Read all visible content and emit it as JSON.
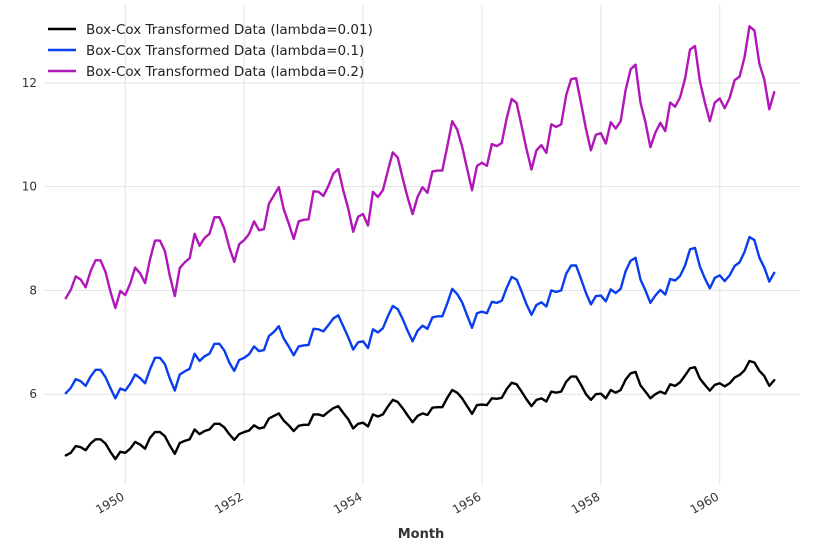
{
  "chart_data": {
    "type": "line",
    "title": "",
    "xlabel": "Month",
    "ylabel": "",
    "xlim": [
      1948.65,
      1961.35
    ],
    "ylim": [
      4.25,
      13.5
    ],
    "grid": true,
    "legend_position": "top-left",
    "x_ticks": [
      1950,
      1952,
      1954,
      1956,
      1958,
      1960
    ],
    "x_tick_labels": [
      "1950",
      "1952",
      "1954",
      "1956",
      "1958",
      "1960"
    ],
    "y_ticks": [
      6,
      8,
      10,
      12
    ],
    "y_tick_labels": [
      "6",
      "8",
      "10",
      "12"
    ],
    "x_start": 1949.0,
    "x_step": 0.0833333,
    "series": [
      {
        "name": "Box-Cox Transformed Data (lambda=0.01)",
        "color": "#000000",
        "values": [
          4.82,
          4.87,
          5.0,
          4.98,
          4.92,
          5.05,
          5.13,
          5.13,
          5.05,
          4.89,
          4.75,
          4.89,
          4.87,
          4.95,
          5.08,
          5.03,
          4.95,
          5.16,
          5.27,
          5.27,
          5.19,
          5.01,
          4.85,
          5.06,
          5.1,
          5.13,
          5.32,
          5.23,
          5.29,
          5.32,
          5.43,
          5.43,
          5.36,
          5.23,
          5.12,
          5.23,
          5.27,
          5.3,
          5.4,
          5.34,
          5.36,
          5.53,
          5.58,
          5.63,
          5.49,
          5.4,
          5.29,
          5.39,
          5.41,
          5.41,
          5.61,
          5.61,
          5.58,
          5.66,
          5.73,
          5.77,
          5.64,
          5.52,
          5.34,
          5.43,
          5.45,
          5.38,
          5.61,
          5.57,
          5.61,
          5.76,
          5.89,
          5.85,
          5.73,
          5.59,
          5.46,
          5.58,
          5.63,
          5.6,
          5.74,
          5.75,
          5.75,
          5.93,
          6.08,
          6.03,
          5.92,
          5.77,
          5.62,
          5.79,
          5.8,
          5.79,
          5.92,
          5.91,
          5.93,
          6.1,
          6.22,
          6.19,
          6.05,
          5.9,
          5.77,
          5.89,
          5.92,
          5.86,
          6.05,
          6.03,
          6.05,
          6.24,
          6.34,
          6.34,
          6.18,
          6.0,
          5.89,
          6.0,
          6.01,
          5.92,
          6.08,
          6.03,
          6.08,
          6.28,
          6.4,
          6.43,
          6.17,
          6.05,
          5.92,
          6.0,
          6.05,
          6.01,
          6.19,
          6.16,
          6.23,
          6.36,
          6.5,
          6.52,
          6.3,
          6.18,
          6.07,
          6.18,
          6.21,
          6.15,
          6.21,
          6.32,
          6.37,
          6.46,
          6.64,
          6.61,
          6.45,
          6.35,
          6.16,
          6.27
        ]
      },
      {
        "name": "Box-Cox Transformed Data (lambda=0.1)",
        "color": "#0a3ded",
        "values": [
          6.02,
          6.12,
          6.29,
          6.25,
          6.16,
          6.34,
          6.47,
          6.47,
          6.33,
          6.12,
          5.92,
          6.11,
          6.07,
          6.2,
          6.38,
          6.31,
          6.21,
          6.48,
          6.7,
          6.7,
          6.58,
          6.3,
          6.07,
          6.38,
          6.44,
          6.49,
          6.78,
          6.64,
          6.73,
          6.78,
          6.97,
          6.97,
          6.84,
          6.61,
          6.45,
          6.66,
          6.7,
          6.77,
          6.92,
          6.83,
          6.85,
          7.12,
          7.2,
          7.31,
          7.07,
          6.92,
          6.75,
          6.92,
          6.94,
          6.95,
          7.26,
          7.25,
          7.21,
          7.33,
          7.46,
          7.52,
          7.31,
          7.1,
          6.86,
          7.0,
          7.02,
          6.89,
          7.25,
          7.19,
          7.27,
          7.5,
          7.7,
          7.64,
          7.45,
          7.22,
          7.02,
          7.22,
          7.32,
          7.26,
          7.48,
          7.5,
          7.5,
          7.75,
          8.03,
          7.93,
          7.77,
          7.52,
          7.28,
          7.56,
          7.59,
          7.56,
          7.78,
          7.76,
          7.8,
          8.05,
          8.26,
          8.21,
          7.98,
          7.73,
          7.53,
          7.72,
          7.77,
          7.69,
          8.0,
          7.97,
          8.0,
          8.32,
          8.48,
          8.48,
          8.22,
          7.95,
          7.73,
          7.89,
          7.9,
          7.79,
          8.02,
          7.95,
          8.03,
          8.37,
          8.57,
          8.63,
          8.21,
          8.0,
          7.76,
          7.9,
          8.01,
          7.92,
          8.22,
          8.19,
          8.28,
          8.48,
          8.79,
          8.82,
          8.46,
          8.23,
          8.04,
          8.24,
          8.29,
          8.18,
          8.29,
          8.47,
          8.54,
          8.74,
          9.03,
          8.97,
          8.63,
          8.44,
          8.17,
          8.34
        ]
      },
      {
        "name": "Box-Cox Transformed Data (lambda=0.2)",
        "color": "#b016b8",
        "values": [
          7.85,
          8.01,
          8.27,
          8.21,
          8.06,
          8.37,
          8.58,
          8.58,
          8.36,
          7.98,
          7.66,
          7.99,
          7.91,
          8.13,
          8.44,
          8.33,
          8.14,
          8.6,
          8.96,
          8.96,
          8.76,
          8.28,
          7.89,
          8.43,
          8.54,
          8.62,
          9.09,
          8.86,
          9.01,
          9.09,
          9.41,
          9.41,
          9.19,
          8.83,
          8.55,
          8.89,
          8.97,
          9.09,
          9.33,
          9.16,
          9.18,
          9.67,
          9.83,
          9.99,
          9.56,
          9.29,
          8.99,
          9.33,
          9.36,
          9.37,
          9.91,
          9.9,
          9.82,
          10.01,
          10.25,
          10.34,
          9.93,
          9.58,
          9.13,
          9.42,
          9.47,
          9.25,
          9.9,
          9.8,
          9.93,
          10.3,
          10.66,
          10.56,
          10.16,
          9.79,
          9.47,
          9.8,
          9.99,
          9.88,
          10.29,
          10.31,
          10.31,
          10.77,
          11.26,
          11.1,
          10.77,
          10.35,
          9.93,
          10.4,
          10.46,
          10.4,
          10.82,
          10.78,
          10.84,
          11.32,
          11.69,
          11.61,
          11.17,
          10.72,
          10.33,
          10.7,
          10.8,
          10.65,
          11.2,
          11.15,
          11.2,
          11.76,
          12.07,
          12.09,
          11.61,
          11.11,
          10.7,
          11.0,
          11.03,
          10.83,
          11.24,
          11.12,
          11.26,
          11.86,
          12.26,
          12.35,
          11.62,
          11.24,
          10.76,
          11.04,
          11.23,
          11.07,
          11.62,
          11.54,
          11.72,
          12.08,
          12.64,
          12.71,
          12.03,
          11.62,
          11.26,
          11.62,
          11.7,
          11.51,
          11.71,
          12.05,
          12.12,
          12.49,
          13.09,
          13.01,
          12.37,
          12.06,
          11.49,
          11.82
        ]
      }
    ]
  }
}
